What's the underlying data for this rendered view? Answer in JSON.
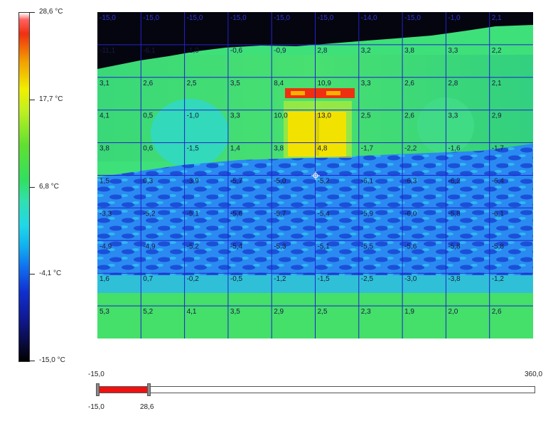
{
  "scale": {
    "max_label": "28,6 °C",
    "upper_label": "17,7 °C",
    "mid_label": "6,8 °C",
    "lower_label": "-4,1 °C",
    "min_label": "-15,0 °C"
  },
  "thermogram": {
    "grid_values": [
      [
        "-15,0",
        "-15,0",
        "-15,0",
        "-15,0",
        "-15,0",
        "-15,0",
        "-14,0",
        "-15,0",
        "-1,0",
        "2,1"
      ],
      [
        "-11,1",
        "-6,1",
        "-1,0",
        "-0,6",
        "-0,9",
        "2,8",
        "3,2",
        "3,8",
        "3,3",
        "2,2"
      ],
      [
        "3,1",
        "2,6",
        "2,5",
        "3,5",
        "8,4",
        "10,9",
        "3,3",
        "2,6",
        "2,8",
        "2,1"
      ],
      [
        "4,1",
        "0,5",
        "-1,0",
        "3,3",
        "10,0",
        "13,0",
        "2,5",
        "2,6",
        "3,3",
        "2,9"
      ],
      [
        "3,8",
        "0,6",
        "-1,5",
        "1,4",
        "3,8",
        "4,8",
        "-1,7",
        "-2,2",
        "-1,6",
        "-1,7"
      ],
      [
        "1,5",
        "0,3",
        "-3,9",
        "-5,7",
        "-5,0",
        "-5,2",
        "-6,1",
        "-6,3",
        "-6,2",
        "-6,4"
      ],
      [
        "-3,3",
        "-5,2",
        "-5,1",
        "-5,6",
        "-5,7",
        "-5,4",
        "-5,9",
        "-6,0",
        "-5,8",
        "-6,1"
      ],
      [
        "-4,9",
        "-4,9",
        "-5,2",
        "-5,4",
        "-5,3",
        "-5,1",
        "-5,5",
        "-5,6",
        "-5,8",
        "-5,8"
      ],
      [
        "1,6",
        "0,7",
        "-0,2",
        "-0,5",
        "-1,2",
        "-1,5",
        "-2,5",
        "-3,0",
        "-3,8",
        "-1,2"
      ],
      [
        "5,3",
        "5,2",
        "4,1",
        "3,5",
        "2,9",
        "2,5",
        "2,3",
        "1,9",
        "2,0",
        "2,6"
      ]
    ],
    "colors": {
      "sky": "#050510",
      "wall": "#3ee07a",
      "roof": "#1e8ef0",
      "roof_dark": "#1a4fd8",
      "warm": "#f4e000",
      "hot": "#ee3010",
      "grid_line": "#2222cc"
    }
  },
  "range": {
    "scale_min": "-15,0",
    "scale_max": "360,0",
    "selected_min": "-15,0",
    "selected_max": "28,6",
    "selected_min_value": -15.0,
    "selected_max_value": 28.6,
    "scale_min_value": -15.0,
    "scale_max_value": 360.0
  }
}
